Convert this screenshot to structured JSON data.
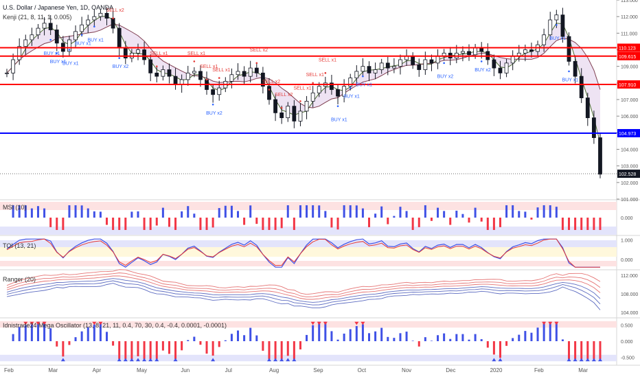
{
  "header": {
    "symbol_title": "U.S. Dollar / Japanese Yen, 1D, OANDA",
    "indicator_title": "Kenji (21, 8, 11, 1, 0.005)"
  },
  "colors": {
    "bull": "#131722",
    "bear": "#131722",
    "red_line": "#ff0000",
    "blue_line": "#0000ff",
    "signal_buy": "#2962ff",
    "signal_sell": "#e53935",
    "histogram_blue": "#3f51e6",
    "histogram_red": "#f23645",
    "band_red_fill": "#fde2e2",
    "band_blue_fill": "#e3e4fb",
    "band_yellow_fill": "#fff8dc"
  },
  "chart_data": [
    {
      "type": "line",
      "name": "price",
      "title": "U.S. Dollar / Japanese Yen, 1D, OANDA",
      "x_labels": [
        "Feb",
        "Mar",
        "Apr",
        "May",
        "Jun",
        "Jul",
        "Aug",
        "Sep",
        "Oct",
        "Nov",
        "Dec",
        "2020",
        "Feb",
        "Mar"
      ],
      "y_ticks": [
        "113.000",
        "112.000",
        "111.000",
        "110.000",
        "109.000",
        "108.000",
        "107.000",
        "106.000",
        "105.000",
        "104.000",
        "103.000",
        "102.000",
        "101.000"
      ],
      "ylim": [
        101,
        113
      ],
      "levels": [
        {
          "label": "110.123",
          "value": 110.123,
          "color": "red"
        },
        {
          "label": "109.615",
          "value": 109.615,
          "color": "red"
        },
        {
          "label": "107.910",
          "value": 107.91,
          "color": "red"
        },
        {
          "label": "104.973",
          "value": 104.973,
          "color": "blue"
        },
        {
          "label": "102.528",
          "value": 102.528,
          "color": "dark"
        }
      ],
      "close_approx": [
        108.6,
        109.4,
        110.2,
        110.6,
        110.9,
        111.3,
        111.6,
        111.2,
        110.4,
        109.9,
        110.6,
        111.1,
        111.5,
        111.8,
        112.0,
        112.2,
        111.9,
        111.3,
        110.1,
        109.5,
        109.8,
        110.0,
        109.4,
        108.6,
        108.4,
        108.8,
        108.4,
        107.9,
        108.2,
        108.6,
        108.7,
        108.2,
        107.6,
        107.3,
        107.7,
        108.1,
        108.5,
        108.7,
        108.4,
        108.9,
        108.6,
        107.8,
        107.0,
        106.2,
        105.9,
        106.6,
        105.7,
        106.3,
        106.9,
        107.4,
        107.8,
        108.0,
        107.6,
        107.2,
        107.8,
        108.3,
        108.7,
        109.0,
        108.6,
        108.8,
        109.2,
        108.9,
        109.0,
        109.4,
        109.6,
        109.1,
        108.8,
        109.4,
        109.2,
        109.6,
        109.8,
        109.5,
        109.8,
        109.9,
        109.7,
        110.1,
        109.9,
        109.4,
        108.9,
        108.6,
        109.2,
        109.6,
        109.8,
        110.0,
        109.9,
        110.3,
        110.9,
        111.8,
        112.1,
        110.8,
        109.3,
        108.4,
        107.1,
        105.9,
        104.7,
        102.5
      ],
      "signals": [
        {
          "label": "BUY x1",
          "type": "buy"
        },
        {
          "label": "BUY x1",
          "type": "buy"
        },
        {
          "label": "BUY x1",
          "type": "buy"
        },
        {
          "label": "BUY x1",
          "type": "buy"
        },
        {
          "label": "BUY x2",
          "type": "buy"
        },
        {
          "label": "BUY x1",
          "type": "buy"
        },
        {
          "label": "SELL x2",
          "type": "sell"
        },
        {
          "label": "SELL x1",
          "type": "sell"
        },
        {
          "label": "SELL x1",
          "type": "sell"
        },
        {
          "label": "SELL x1",
          "type": "sell"
        },
        {
          "label": "SELL x1",
          "type": "sell"
        },
        {
          "label": "SELL x2",
          "type": "sell"
        },
        {
          "label": "SELL x2",
          "type": "sell"
        },
        {
          "label": "SELL x2",
          "type": "sell"
        },
        {
          "label": "BUY x2",
          "type": "buy"
        },
        {
          "label": "SELL x1",
          "type": "sell"
        },
        {
          "label": "SELL x1",
          "type": "sell"
        },
        {
          "label": "SELL x1",
          "type": "sell"
        },
        {
          "label": "BUY x1",
          "type": "buy"
        },
        {
          "label": "BUY x1",
          "type": "buy"
        },
        {
          "label": "BUY x1",
          "type": "buy"
        },
        {
          "label": "BUY x2",
          "type": "buy"
        },
        {
          "label": "BUY x2",
          "type": "buy"
        },
        {
          "label": "BUY x1",
          "type": "buy"
        },
        {
          "label": "BUY x1",
          "type": "buy"
        }
      ]
    },
    {
      "type": "bar",
      "name": "MSI (10)",
      "title": "MSI (10)",
      "y_ticks": [
        "0.000"
      ],
      "ylim": [
        -1,
        1
      ]
    },
    {
      "type": "line",
      "name": "TOI (13, 21)",
      "title": "TOI (13, 21)",
      "y_ticks": [
        "1.000",
        "0.000"
      ],
      "ylim": [
        -0.5,
        1.2
      ]
    },
    {
      "type": "line",
      "name": "Ranger (20)",
      "title": "Ranger (20)",
      "y_ticks": [
        "112.000",
        "108.000",
        "104.000"
      ],
      "ylim": [
        103,
        113
      ]
    },
    {
      "type": "bar",
      "name": "Idnistrade24 Mega Oscillator",
      "title": "Idnistrade24 Mega Oscillator (13, 8, 21, 11, 0.4, 70, 30, 0.4, -0.4, 0.0001, -0.0001)",
      "y_ticks": [
        "0.500",
        "0.000",
        "-0.500"
      ],
      "ylim": [
        -0.7,
        0.7
      ]
    }
  ]
}
